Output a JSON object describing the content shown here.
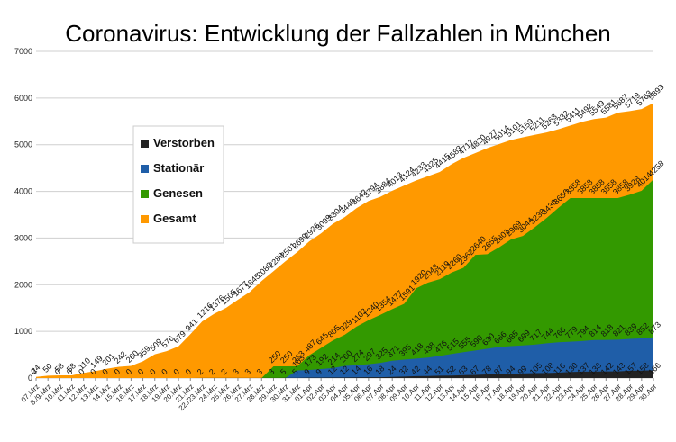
{
  "chart_data": {
    "type": "area",
    "title": "Coronavirus: Entwicklung der Fallzahlen in München",
    "xlabel": "",
    "ylabel": "",
    "ylim": [
      0,
      7000
    ],
    "yticks": [
      0,
      1000,
      2000,
      3000,
      4000,
      5000,
      6000,
      7000
    ],
    "grid": true,
    "legend_position": "left",
    "categories": [
      "07.Mrz",
      "8./9.Mrz",
      "10.Mrz",
      "11.Mrz",
      "12.Mrz",
      "13.Mrz",
      "14.Mrz",
      "15.Mrz",
      "16.Mrz",
      "17.Mrz",
      "18.Mrz",
      "19.Mrz",
      "20.Mrz",
      "21.Mrz",
      "22./23.Mrz",
      "24.Mrz",
      "25.Mrz",
      "26.Mrz",
      "27.Mrz",
      "28.Mrz",
      "29.Mrz",
      "30.Mrz",
      "31.Mrz",
      "01.Apr",
      "02.Apr",
      "03.Apr",
      "04.Apr",
      "05.Apr",
      "06.Apr",
      "07.Apr",
      "08.Apr",
      "09.Apr",
      "10.Apr",
      "11.Apr",
      "12.Apr",
      "13.Apr",
      "14.Apr",
      "15.Apr",
      "16.Apr",
      "17.Apr",
      "18.Apr",
      "19.Apr",
      "20.Apr",
      "21.Apr",
      "22.Apr",
      "23.Apr",
      "24.Apr",
      "25.Apr",
      "26.Apr",
      "27.Apr",
      "28.Apr",
      "29.Apr",
      "30.Apr"
    ],
    "series": [
      {
        "name": "Gesamt",
        "color": "#ff9900",
        "values": [
          24,
          50,
          58,
          58,
          110,
          149,
          201,
          242,
          260,
          359,
          509,
          576,
          679,
          941,
          1216,
          1376,
          1505,
          1677,
          1845,
          2080,
          2289,
          2501,
          2699,
          2926,
          3099,
          3304,
          3449,
          3642,
          3794,
          3884,
          4013,
          4124,
          4233,
          4325,
          4415,
          4583,
          4717,
          4820,
          4927,
          5014,
          5101,
          5159,
          5211,
          5263,
          5332,
          5411,
          5492,
          5549,
          5581,
          5687,
          5719,
          5763,
          5893
        ]
      },
      {
        "name": "Genesen",
        "color": "#339900",
        "values": [
          0,
          0,
          0,
          0,
          0,
          0,
          0,
          0,
          0,
          0,
          0,
          0,
          0,
          0,
          0,
          0,
          0,
          0,
          0,
          0,
          250,
          250,
          253,
          487,
          645,
          805,
          929,
          1103,
          1240,
          1354,
          1477,
          1591,
          1920,
          2043,
          2119,
          2260,
          2362,
          2640,
          2655,
          2801,
          2969,
          3044,
          3230,
          3430,
          3650,
          3858,
          3858,
          3858,
          3858,
          3858,
          3928,
          4014,
          4258
        ]
      },
      {
        "name": "Stationär",
        "color": "#1f5ea8",
        "values": [
          0,
          0,
          0,
          0,
          0,
          0,
          0,
          0,
          0,
          0,
          0,
          0,
          0,
          0,
          0,
          0,
          0,
          0,
          0,
          0,
          0,
          0,
          163,
          173,
          192,
          214,
          260,
          274,
          297,
          325,
          371,
          395,
          418,
          438,
          476,
          515,
          555,
          590,
          630,
          666,
          685,
          699,
          717,
          744,
          766,
          779,
          794,
          814,
          818,
          821,
          839,
          852,
          873
        ]
      },
      {
        "name": "Verstorben",
        "color": "#222222",
        "values": [
          0,
          0,
          0,
          0,
          0,
          0,
          0,
          0,
          0,
          0,
          0,
          0,
          0,
          0,
          2,
          2,
          2,
          3,
          3,
          3,
          3,
          5,
          5,
          9,
          9,
          12,
          12,
          14,
          16,
          18,
          24,
          32,
          42,
          44,
          51,
          52,
          63,
          67,
          78,
          87,
          94,
          99,
          105,
          108,
          116,
          130,
          137,
          138,
          142,
          143,
          157,
          158,
          166
        ]
      }
    ]
  }
}
